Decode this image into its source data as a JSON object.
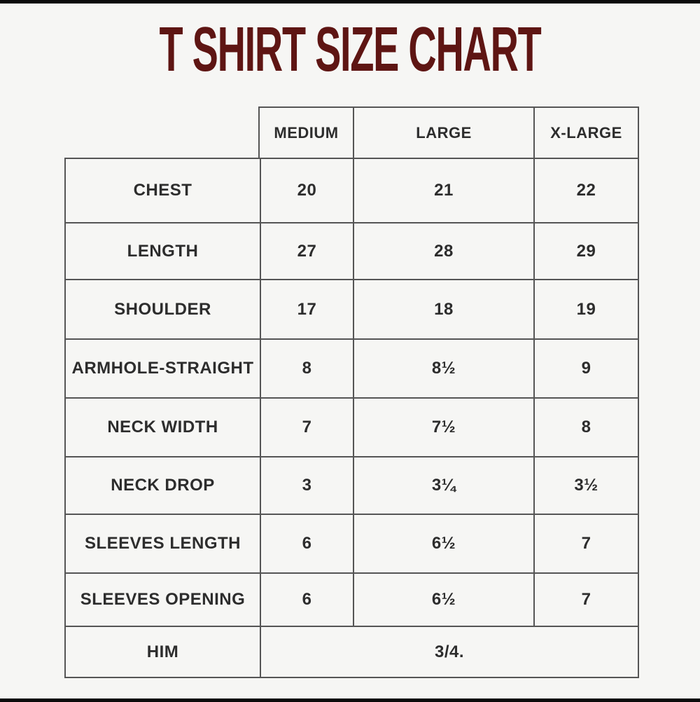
{
  "colors": {
    "bg": "#f6f6f4",
    "title": "#5e1513",
    "line": "#555555",
    "text": "#2d2d2d",
    "edge": "#0a0a0a"
  },
  "chart_data": {
    "type": "table",
    "title": "T SHIRT SIZE CHART",
    "columns": [
      "MEDIUM",
      "LARGE",
      "X-LARGE"
    ],
    "rows": [
      {
        "label": "CHEST",
        "values": [
          "20",
          "21",
          "22"
        ]
      },
      {
        "label": "LENGTH",
        "values": [
          "27",
          "28",
          "29"
        ]
      },
      {
        "label": "SHOULDER",
        "values": [
          "17",
          "18",
          "19"
        ]
      },
      {
        "label": "ARMHOLE-STRAIGHT",
        "values": [
          "8",
          "8½",
          "9"
        ]
      },
      {
        "label": "NECK WIDTH",
        "values": [
          "7",
          "7½",
          "8"
        ]
      },
      {
        "label": "NECK DROP",
        "values": [
          "3",
          "3¼",
          "3½"
        ]
      },
      {
        "label": "SLEEVES LENGTH",
        "values": [
          "6",
          "6½",
          "7"
        ]
      },
      {
        "label": "SLEEVES OPENING",
        "values": [
          "6",
          "6½",
          "7"
        ]
      },
      {
        "label": "HIM",
        "values": [
          "3/4."
        ],
        "colspan": 3
      }
    ],
    "layout": {
      "legend": "none",
      "grid": "full-borders",
      "first_column_header_empty": true
    }
  }
}
